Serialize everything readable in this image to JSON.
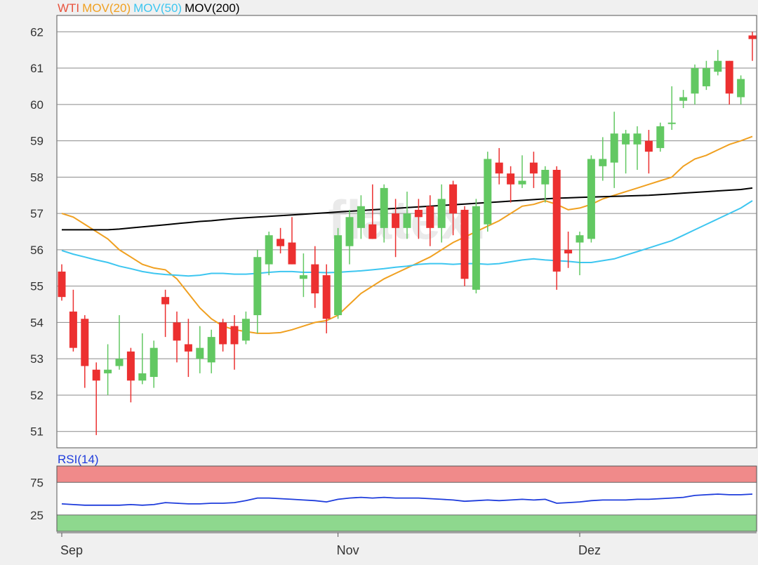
{
  "chart_data": {
    "type": "candlestick",
    "watermark": "flatex · ONLINE BROKER",
    "price_panel": {
      "legend": [
        {
          "label": "WTI",
          "color": "#e8523c"
        },
        {
          "label": "MOV(20)",
          "color": "#f0a020"
        },
        {
          "label": "MOV(50)",
          "color": "#3dc6f0"
        },
        {
          "label": "MOV(200)",
          "color": "#000000"
        }
      ],
      "ylim": [
        50.55,
        62.45
      ],
      "yticks": [
        51,
        52,
        53,
        54,
        55,
        56,
        57,
        58,
        59,
        60,
        61,
        62
      ],
      "up_color": "#62c862",
      "down_color": "#ec3030",
      "grid": true,
      "candles": [
        [
          55.4,
          55.6,
          54.6,
          54.7
        ],
        [
          54.3,
          54.9,
          53.2,
          53.3
        ],
        [
          54.1,
          54.2,
          52.2,
          52.8
        ],
        [
          52.7,
          52.9,
          50.9,
          52.4
        ],
        [
          52.6,
          53.4,
          52.0,
          52.7
        ],
        [
          52.8,
          54.2,
          52.7,
          53.0
        ],
        [
          53.2,
          53.3,
          51.8,
          52.4
        ],
        [
          52.4,
          53.7,
          52.3,
          52.6
        ],
        [
          52.5,
          53.5,
          52.2,
          53.3
        ],
        [
          54.7,
          54.9,
          53.6,
          54.5
        ],
        [
          54.0,
          54.3,
          52.9,
          53.5
        ],
        [
          53.4,
          54.1,
          52.5,
          53.2
        ],
        [
          53.0,
          53.9,
          52.6,
          53.3
        ],
        [
          52.9,
          53.8,
          52.6,
          53.6
        ],
        [
          54.0,
          54.1,
          53.2,
          53.4
        ],
        [
          53.9,
          54.2,
          52.7,
          53.4
        ],
        [
          53.5,
          54.3,
          53.4,
          54.1
        ],
        [
          54.2,
          56.0,
          53.7,
          55.8
        ],
        [
          55.6,
          56.5,
          55.3,
          56.4
        ],
        [
          56.3,
          56.6,
          55.9,
          56.1
        ],
        [
          56.2,
          56.9,
          55.6,
          55.6
        ],
        [
          55.2,
          55.9,
          54.7,
          55.3
        ],
        [
          55.6,
          56.1,
          54.4,
          54.8
        ],
        [
          55.3,
          55.6,
          53.7,
          54.1
        ],
        [
          54.2,
          56.6,
          54.1,
          56.4
        ],
        [
          56.1,
          57.1,
          55.6,
          56.9
        ],
        [
          56.6,
          57.5,
          56.3,
          57.2
        ],
        [
          56.7,
          57.8,
          56.3,
          56.3
        ],
        [
          56.6,
          57.8,
          56.2,
          57.7
        ],
        [
          57.0,
          57.4,
          55.8,
          56.6
        ],
        [
          56.6,
          57.6,
          56.3,
          57.0
        ],
        [
          57.1,
          57.4,
          56.3,
          56.9
        ],
        [
          57.2,
          57.5,
          56.1,
          56.6
        ],
        [
          56.6,
          57.8,
          56.2,
          57.4
        ],
        [
          57.8,
          57.9,
          56.4,
          57.0
        ],
        [
          57.1,
          57.2,
          55.0,
          55.2
        ],
        [
          54.9,
          57.4,
          54.8,
          57.2
        ],
        [
          56.7,
          58.7,
          56.5,
          58.5
        ],
        [
          58.4,
          58.8,
          57.8,
          58.1
        ],
        [
          58.1,
          58.3,
          57.3,
          57.8
        ],
        [
          57.8,
          58.6,
          57.7,
          57.9
        ],
        [
          58.4,
          58.7,
          57.7,
          58.1
        ],
        [
          57.8,
          58.3,
          57.3,
          58.2
        ],
        [
          58.2,
          58.3,
          54.9,
          55.4
        ],
        [
          56.0,
          56.5,
          55.5,
          55.9
        ],
        [
          56.2,
          56.5,
          55.3,
          56.4
        ],
        [
          56.3,
          58.6,
          56.2,
          58.5
        ],
        [
          58.3,
          59.1,
          57.9,
          58.5
        ],
        [
          58.4,
          59.8,
          57.7,
          59.2
        ],
        [
          58.9,
          59.3,
          58.1,
          59.2
        ],
        [
          58.9,
          59.4,
          58.2,
          59.2
        ],
        [
          59.0,
          59.3,
          58.1,
          58.7
        ],
        [
          58.8,
          59.5,
          58.7,
          59.4
        ],
        [
          59.5,
          60.5,
          59.3,
          59.5
        ],
        [
          60.1,
          60.4,
          59.9,
          60.2
        ],
        [
          60.3,
          61.1,
          60.0,
          61.0
        ],
        [
          60.5,
          61.2,
          60.4,
          61.0
        ],
        [
          60.9,
          61.5,
          60.8,
          61.2
        ],
        [
          61.2,
          61.2,
          60.0,
          60.3
        ],
        [
          60.2,
          60.8,
          60.0,
          60.7
        ],
        [
          61.9,
          62.0,
          61.2,
          61.8
        ]
      ],
      "mov20": [
        57.0,
        56.9,
        56.7,
        56.5,
        56.3,
        56.0,
        55.8,
        55.6,
        55.5,
        55.45,
        55.2,
        54.8,
        54.4,
        54.1,
        53.9,
        53.8,
        53.75,
        53.7,
        53.7,
        53.72,
        53.8,
        53.9,
        54.0,
        54.05,
        54.2,
        54.5,
        54.8,
        55.0,
        55.2,
        55.35,
        55.5,
        55.65,
        55.8,
        56.0,
        56.2,
        56.35,
        56.5,
        56.65,
        56.8,
        57.0,
        57.2,
        57.25,
        57.35,
        57.25,
        57.1,
        57.15,
        57.25,
        57.4,
        57.5,
        57.6,
        57.7,
        57.8,
        57.9,
        58.0,
        58.3,
        58.5,
        58.6,
        58.75,
        58.9,
        59.0,
        59.12
      ],
      "mov50": [
        55.98,
        55.88,
        55.8,
        55.72,
        55.65,
        55.55,
        55.48,
        55.4,
        55.35,
        55.32,
        55.3,
        55.28,
        55.3,
        55.35,
        55.35,
        55.33,
        55.33,
        55.35,
        55.38,
        55.4,
        55.4,
        55.38,
        55.38,
        55.37,
        55.38,
        55.4,
        55.42,
        55.45,
        55.48,
        55.52,
        55.55,
        55.6,
        55.62,
        55.62,
        55.6,
        55.62,
        55.62,
        55.6,
        55.62,
        55.67,
        55.72,
        55.75,
        55.72,
        55.7,
        55.68,
        55.65,
        55.65,
        55.7,
        55.75,
        55.85,
        55.95,
        56.05,
        56.15,
        56.25,
        56.4,
        56.55,
        56.7,
        56.85,
        57.0,
        57.15,
        57.35
      ],
      "mov200": [
        56.55,
        56.55,
        56.55,
        56.55,
        56.55,
        56.57,
        56.6,
        56.63,
        56.66,
        56.69,
        56.72,
        56.75,
        56.78,
        56.8,
        56.83,
        56.86,
        56.88,
        56.9,
        56.92,
        56.94,
        56.96,
        56.98,
        57.0,
        57.02,
        57.04,
        57.06,
        57.08,
        57.1,
        57.12,
        57.14,
        57.16,
        57.18,
        57.2,
        57.22,
        57.24,
        57.26,
        57.28,
        57.3,
        57.32,
        57.34,
        57.36,
        57.38,
        57.4,
        57.42,
        57.43,
        57.44,
        57.45,
        57.46,
        57.47,
        57.48,
        57.49,
        57.5,
        57.52,
        57.54,
        57.56,
        57.58,
        57.6,
        57.62,
        57.64,
        57.66,
        57.7
      ]
    },
    "rsi_panel": {
      "label": "RSI(14)",
      "ylim": [
        0,
        100
      ],
      "yticks": [
        25,
        75
      ],
      "overbought_band": [
        75,
        100
      ],
      "oversold_band": [
        0,
        25
      ],
      "overbought_color": "#f08a8a",
      "oversold_color": "#8ed88e",
      "line_color": "#1e3cdc",
      "values": [
        42,
        41,
        40,
        40,
        40,
        40,
        41,
        40,
        41,
        44,
        43,
        42,
        42,
        43,
        43,
        44,
        47,
        51,
        51,
        50,
        49,
        48,
        47,
        45,
        49,
        51,
        52,
        51,
        52,
        51,
        51,
        51,
        50,
        49,
        48,
        46,
        47,
        48,
        47,
        48,
        49,
        48,
        49,
        43,
        44,
        45,
        47,
        48,
        48,
        48,
        49,
        49,
        50,
        51,
        52,
        55,
        56,
        57,
        56,
        56,
        57
      ]
    },
    "x_axis": {
      "labels": [
        {
          "label": "Sep",
          "index": 0
        },
        {
          "label": "Nov",
          "index": 24
        },
        {
          "label": "Dez",
          "index": 45
        }
      ]
    }
  }
}
